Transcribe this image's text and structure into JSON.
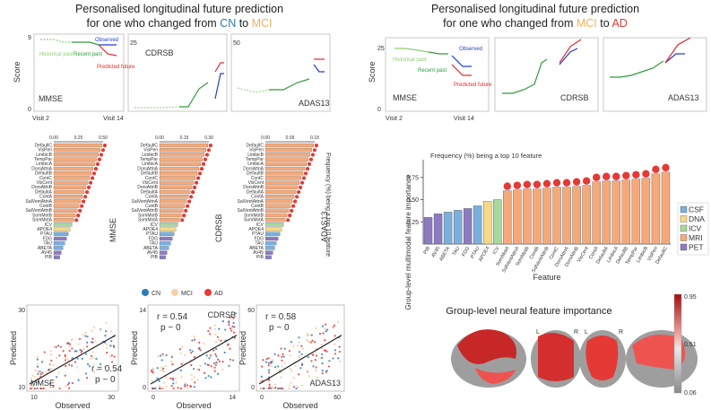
{
  "titles": {
    "left_line1": "Personalised longitudinal future prediction",
    "left_line2_prefix": "for one who changed from ",
    "left_from": "CN",
    "left_mid": " to ",
    "left_to": "MCI",
    "right_line1": "Personalised longitudinal future prediction",
    "right_line2_prefix": "for one who changed from ",
    "right_from": "MCI",
    "right_mid": " to ",
    "right_to": "AD"
  },
  "colors": {
    "cn": "#2b7bba",
    "mci": "#f2b15b",
    "ad": "#e53935",
    "historical": "#8fce73",
    "recent": "#2e9c3a",
    "observed": "#1f3fd0",
    "predicted": "#e8282b",
    "csf": "#7ab0de",
    "dna": "#f5d98a",
    "icv": "#a8d89c",
    "mri": "#f5a97a",
    "pet": "#8c7bc2"
  },
  "trajectory": {
    "score_label": "Score",
    "visit_start": "Visit 2",
    "visit_end": "Visit 14",
    "annotations": {
      "historical": "Historical past",
      "recent": "Recent past",
      "observed": "Observed",
      "predicted": "Predicted future"
    },
    "left": {
      "mmse": "MMSE",
      "cdrsb": "CDRSB",
      "adas13": "ADAS13",
      "mmse_ticks": [
        "0",
        "9"
      ],
      "cdrsb_ticks": [
        "0",
        "25"
      ],
      "adas_ticks": [
        "0",
        "50"
      ]
    },
    "right": {
      "mmse": "MMSE",
      "cdrsb": "CDRSB",
      "adas13": "ADAS13",
      "mmse_ticks": [
        "0",
        "25"
      ]
    }
  },
  "importance_small": {
    "frequency_label": "Frequency (%) being a top 10 feature",
    "panels": [
      {
        "name": "MMSE",
        "ticks": [
          "0.00",
          "0.25",
          "0.50"
        ],
        "max": 0.5
      },
      {
        "name": "CDRSB",
        "ticks": [
          "0.00",
          "0.15",
          "0.30"
        ],
        "max": 0.3
      },
      {
        "name": "ADAS13",
        "ticks": [
          "0.00",
          "0.09",
          "0.18"
        ],
        "max": 0.18
      }
    ],
    "features": [
      "DefaultC",
      "VisPeri",
      "LimbicB",
      "TempPar",
      "LimbicA",
      "DorsAttnA",
      "DefaultB",
      "ContC",
      "VisCent",
      "DorsAttnB",
      "DefaultA",
      "ContA",
      "SalVentAttnA",
      "ContB",
      "SalVentAttnB",
      "SomMotB",
      "SomMotA",
      "ICV",
      "APOE4",
      "PTAU",
      "FDG",
      "TAU",
      "ABETA",
      "AV45",
      "PIB"
    ],
    "groups": [
      "MRI",
      "MRI",
      "MRI",
      "MRI",
      "MRI",
      "MRI",
      "MRI",
      "MRI",
      "MRI",
      "MRI",
      "MRI",
      "MRI",
      "MRI",
      "MRI",
      "MRI",
      "MRI",
      "MRI",
      "ICV",
      "DNA",
      "CSF",
      "PET",
      "CSF",
      "CSF",
      "PET",
      "PET"
    ]
  },
  "group_chart": {
    "title": "Frequency (%) being a top 10 feature",
    "ylabel": "Group-level multimodal feature importance",
    "xlabel": "Feature",
    "yticks": [
      "0.25",
      "0.50",
      "0.75"
    ],
    "legend": [
      "CSF",
      "DNA",
      "ICV",
      "MRI",
      "PET"
    ]
  },
  "chart_data": {
    "type": "bar",
    "title": "Group-level multimodal feature importance",
    "categories": [
      "PIB",
      "AV45",
      "ABETA",
      "TAU",
      "FDG",
      "PTAU",
      "APOE4",
      "ICV",
      "SomMotA",
      "SalVentAttnA",
      "SomMotB",
      "ContB",
      "SalVentAttnB",
      "ContC",
      "DorsAttnA",
      "DorsAttnB",
      "VisCent",
      "ContA",
      "DefaultA",
      "LimbicA",
      "DefaultB",
      "TempPar",
      "LimbicB",
      "VisPeri",
      "DefaultC"
    ],
    "values": [
      0.3,
      0.34,
      0.36,
      0.38,
      0.4,
      0.43,
      0.48,
      0.5,
      0.6,
      0.61,
      0.62,
      0.62,
      0.63,
      0.64,
      0.64,
      0.65,
      0.66,
      0.7,
      0.71,
      0.71,
      0.72,
      0.73,
      0.74,
      0.79,
      0.81
    ],
    "groups": [
      "PET",
      "PET",
      "CSF",
      "CSF",
      "PET",
      "CSF",
      "DNA",
      "ICV",
      "MRI",
      "MRI",
      "MRI",
      "MRI",
      "MRI",
      "MRI",
      "MRI",
      "MRI",
      "MRI",
      "MRI",
      "MRI",
      "MRI",
      "MRI",
      "MRI",
      "MRI",
      "MRI",
      "MRI"
    ],
    "ylim": [
      0.0,
      0.95
    ]
  },
  "scatter": {
    "legend": [
      "CN",
      "MCI",
      "AD"
    ],
    "ylabel": "Predicted",
    "xlabel": "Observed",
    "panels": [
      {
        "name": "MMSE",
        "r": "r = 0.54",
        "p": "p ~ 0",
        "xticks": [
          "10",
          "30"
        ],
        "yticks": [
          "10",
          "30"
        ]
      },
      {
        "name": "CDRSB",
        "r": "r = 0.54",
        "p": "p ~ 0",
        "xticks": [
          "0",
          "14"
        ],
        "yticks": [
          "0",
          "14"
        ]
      },
      {
        "name": "ADAS13",
        "r": "r = 0.58",
        "p": "p ~ 0",
        "xticks": [
          "0",
          "60"
        ],
        "yticks": [
          "0",
          "60"
        ]
      }
    ]
  },
  "brain": {
    "title": "Group-level neural feature importance",
    "colorbar_ticks": [
      "0.95",
      "0.51",
      "0.06"
    ],
    "hemi_left": "L",
    "hemi_right": "R"
  }
}
